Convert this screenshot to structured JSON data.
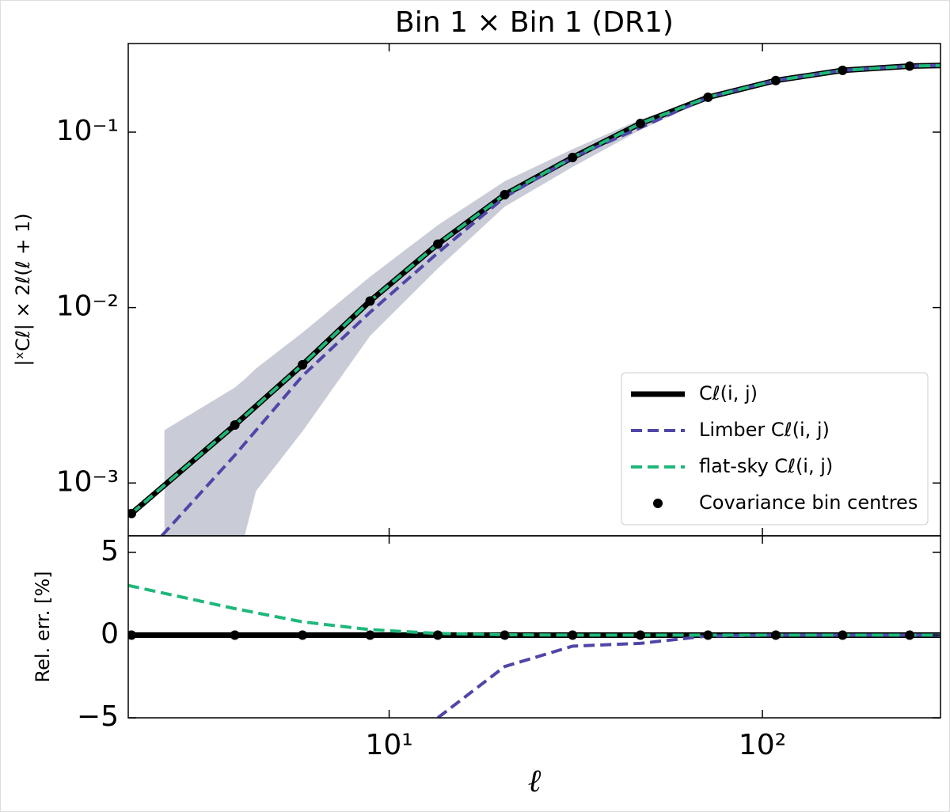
{
  "chart_data": [
    {
      "type": "line",
      "title": "Bin 1 × Bin 1 (DR1)",
      "ylabel": "|ˣCℓ| × 2ℓ(ℓ + 1)",
      "log_x": true,
      "log_y": true,
      "xlim": [
        2,
        300
      ],
      "ylim": [
        0.0005,
        0.32
      ],
      "yticks": [
        {
          "value": 0.001,
          "label": "10⁻³"
        },
        {
          "value": 0.01,
          "label": "10⁻²"
        },
        {
          "value": 0.1,
          "label": "10⁻¹"
        }
      ],
      "legend": "lower right",
      "band": {
        "color": "#c9ccd6",
        "x": [
          2.5,
          3.86,
          4.1,
          4.4,
          5.86,
          8.89,
          13.5,
          20.4,
          31,
          47.1,
          71.5,
          108.6,
          164,
          248,
          300
        ],
        "lower": [
          0.0001,
          0.0004,
          0.0005,
          0.0009,
          0.00197,
          0.0069,
          0.0167,
          0.0376,
          0.0633,
          0.103,
          0.155,
          0.196,
          0.224,
          0.237,
          0.24
        ],
        "upper": [
          0.002,
          0.0035,
          0.0039,
          0.0045,
          0.0072,
          0.015,
          0.0295,
          0.0525,
          0.08,
          0.118,
          0.161,
          0.198,
          0.226,
          0.239,
          0.241
        ]
      },
      "series": [
        {
          "name": "Cℓ(i, j)",
          "color": "#000000",
          "style": "solid",
          "x": [
            2.04,
            3.86,
            5.86,
            8.89,
            13.5,
            20.4,
            31,
            47.1,
            71.5,
            108.6,
            164,
            248,
            300
          ],
          "values": [
            0.00067,
            0.00214,
            0.00472,
            0.0109,
            0.023,
            0.044,
            0.0717,
            0.112,
            0.158,
            0.197,
            0.225,
            0.238,
            0.24
          ]
        },
        {
          "name": "Limber Cℓ(i, j)",
          "color": "#5046a8",
          "style": "dashed",
          "x": [
            2.46,
            3.86,
            5.86,
            8.89,
            13.5,
            20.4,
            31,
            47.1,
            71.5,
            108.6,
            164,
            248,
            300
          ],
          "values": [
            0.0005,
            0.00144,
            0.00408,
            0.0094,
            0.0205,
            0.0426,
            0.0717,
            0.106,
            0.158,
            0.197,
            0.225,
            0.238,
            0.24
          ]
        },
        {
          "name": "flat-sky Cℓ(i, j)",
          "color": "#1fb87a",
          "style": "dashed",
          "x": [
            2.04,
            3.86,
            5.86,
            8.89,
            13.5,
            20.4,
            31,
            47.1,
            71.5,
            108.6,
            164,
            248,
            300
          ],
          "values": [
            0.00067,
            0.00214,
            0.00472,
            0.0109,
            0.023,
            0.044,
            0.0717,
            0.112,
            0.158,
            0.197,
            0.225,
            0.238,
            0.24
          ]
        },
        {
          "name": "Covariance bin centres",
          "color": "#000000",
          "style": "points",
          "x": [
            2.04,
            3.86,
            5.86,
            8.89,
            13.5,
            20.4,
            31,
            47.1,
            71.5,
            108.6,
            164,
            248
          ],
          "values": [
            0.00067,
            0.00214,
            0.00472,
            0.0109,
            0.023,
            0.044,
            0.0717,
            0.112,
            0.158,
            0.197,
            0.225,
            0.238
          ]
        }
      ]
    },
    {
      "type": "line",
      "ylabel": "Rel. err. [%]",
      "xlabel": "ℓ",
      "log_x": true,
      "xlim": [
        2,
        300
      ],
      "ylim": [
        -5,
        6
      ],
      "xticks": [
        {
          "value": 10,
          "label": "10¹"
        },
        {
          "value": 100,
          "label": "10²"
        }
      ],
      "yticks": [
        5,
        0,
        {
          "value": -5,
          "label": "−5"
        }
      ],
      "series": [
        {
          "color": "#000000",
          "style": "solid",
          "x": [
            2,
            300
          ],
          "values": [
            0,
            0
          ]
        },
        {
          "color": "#5046a8",
          "style": "dashed",
          "x": [
            13.5,
            20.4,
            31,
            47.1,
            71.5,
            108.6,
            164,
            248,
            300
          ],
          "values": [
            -5,
            -1.9,
            -0.67,
            -0.5,
            -0.05,
            0,
            0,
            0,
            0
          ]
        },
        {
          "color": "#1fb87a",
          "style": "dashed",
          "x": [
            2,
            3.86,
            5.86,
            8.89,
            13.5,
            20.4,
            31,
            47.1,
            71.5,
            108.6,
            164,
            248,
            300
          ],
          "values": [
            3,
            1.6,
            0.8,
            0.33,
            0.1,
            0.02,
            0,
            0,
            0,
            0,
            0,
            0,
            0
          ]
        },
        {
          "color": "#000000",
          "style": "points",
          "x": [
            2.04,
            3.86,
            5.86,
            8.89,
            13.5,
            20.4,
            31,
            47.1,
            71.5,
            108.6,
            164,
            248
          ],
          "values": [
            0,
            0,
            0,
            0,
            0,
            0,
            0,
            0,
            0,
            0,
            0,
            0
          ]
        }
      ]
    }
  ]
}
